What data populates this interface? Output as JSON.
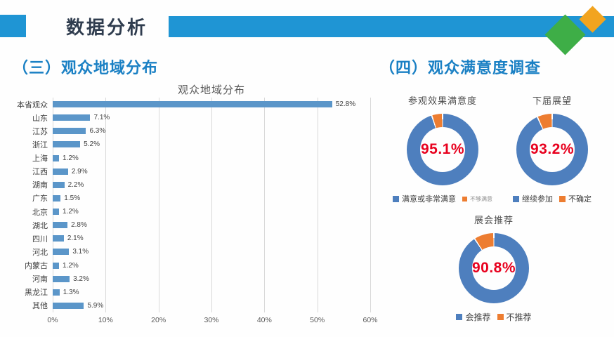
{
  "header": {
    "title": "数据分析"
  },
  "sections": {
    "left_title": "（三）观众地域分布",
    "right_title": "（四）观众满意度调查"
  },
  "colors": {
    "accent_blue": "#1f95d4",
    "title_navy": "#2f3c4e",
    "section_blue": "#1a80c4",
    "diamond_green": "#3eae47",
    "diamond_orange": "#f2a41f",
    "percent_red": "#e8001e",
    "grid_gray": "#d9d9d9",
    "axis_text_gray": "#595959",
    "label_gray": "#3f3f3f"
  },
  "chart_data": [
    {
      "type": "bar",
      "orientation": "horizontal",
      "title": "观众地域分布",
      "categories": [
        "本省观众",
        "山东",
        "江苏",
        "浙江",
        "上海",
        "江西",
        "湖南",
        "广东",
        "北京",
        "湖北",
        "四川",
        "河北",
        "内蒙古",
        "河南",
        "黑龙江",
        "其他"
      ],
      "values": [
        52.8,
        7.1,
        6.3,
        5.2,
        1.2,
        2.9,
        2.2,
        1.5,
        1.2,
        2.8,
        2.1,
        3.1,
        1.2,
        3.2,
        1.3,
        5.9
      ],
      "value_labels": [
        "52.8%",
        "7.1%",
        "6.3%",
        "5.2%",
        "1.2%",
        "2.9%",
        "2.2%",
        "1.5%",
        "1.2%",
        "2.8%",
        "2.1%",
        "3.1%",
        "1.2%",
        "3.2%",
        "1.3%",
        "5.9%"
      ],
      "x_ticks": [
        "0%",
        "10%",
        "20%",
        "30%",
        "40%",
        "50%",
        "60%"
      ],
      "xlim": [
        0,
        60
      ],
      "grid": true,
      "legend_position": "none",
      "bar_color": "#5b96c9"
    },
    {
      "type": "pie",
      "subtype": "donut",
      "title": "参观效果满意度",
      "center_label": "95.1%",
      "slices": [
        {
          "label": "满意或非常满意",
          "value": 95.1,
          "color": "#4e7fbe"
        },
        {
          "label": "不够满意",
          "value": 4.9,
          "color": "#ed7d31",
          "small_legend": true
        }
      ],
      "legend_position": "bottom"
    },
    {
      "type": "pie",
      "subtype": "donut",
      "title": "下届展望",
      "center_label": "93.2%",
      "slices": [
        {
          "label": "继续参加",
          "value": 93.2,
          "color": "#4e7fbe"
        },
        {
          "label": "不确定",
          "value": 6.8,
          "color": "#ed7d31"
        }
      ],
      "legend_position": "bottom"
    },
    {
      "type": "pie",
      "subtype": "donut",
      "title": "展会推荐",
      "center_label": "90.8%",
      "slices": [
        {
          "label": "会推荐",
          "value": 90.8,
          "color": "#4e7fbe"
        },
        {
          "label": "不推荐",
          "value": 9.2,
          "color": "#ed7d31"
        }
      ],
      "legend_position": "bottom"
    }
  ]
}
